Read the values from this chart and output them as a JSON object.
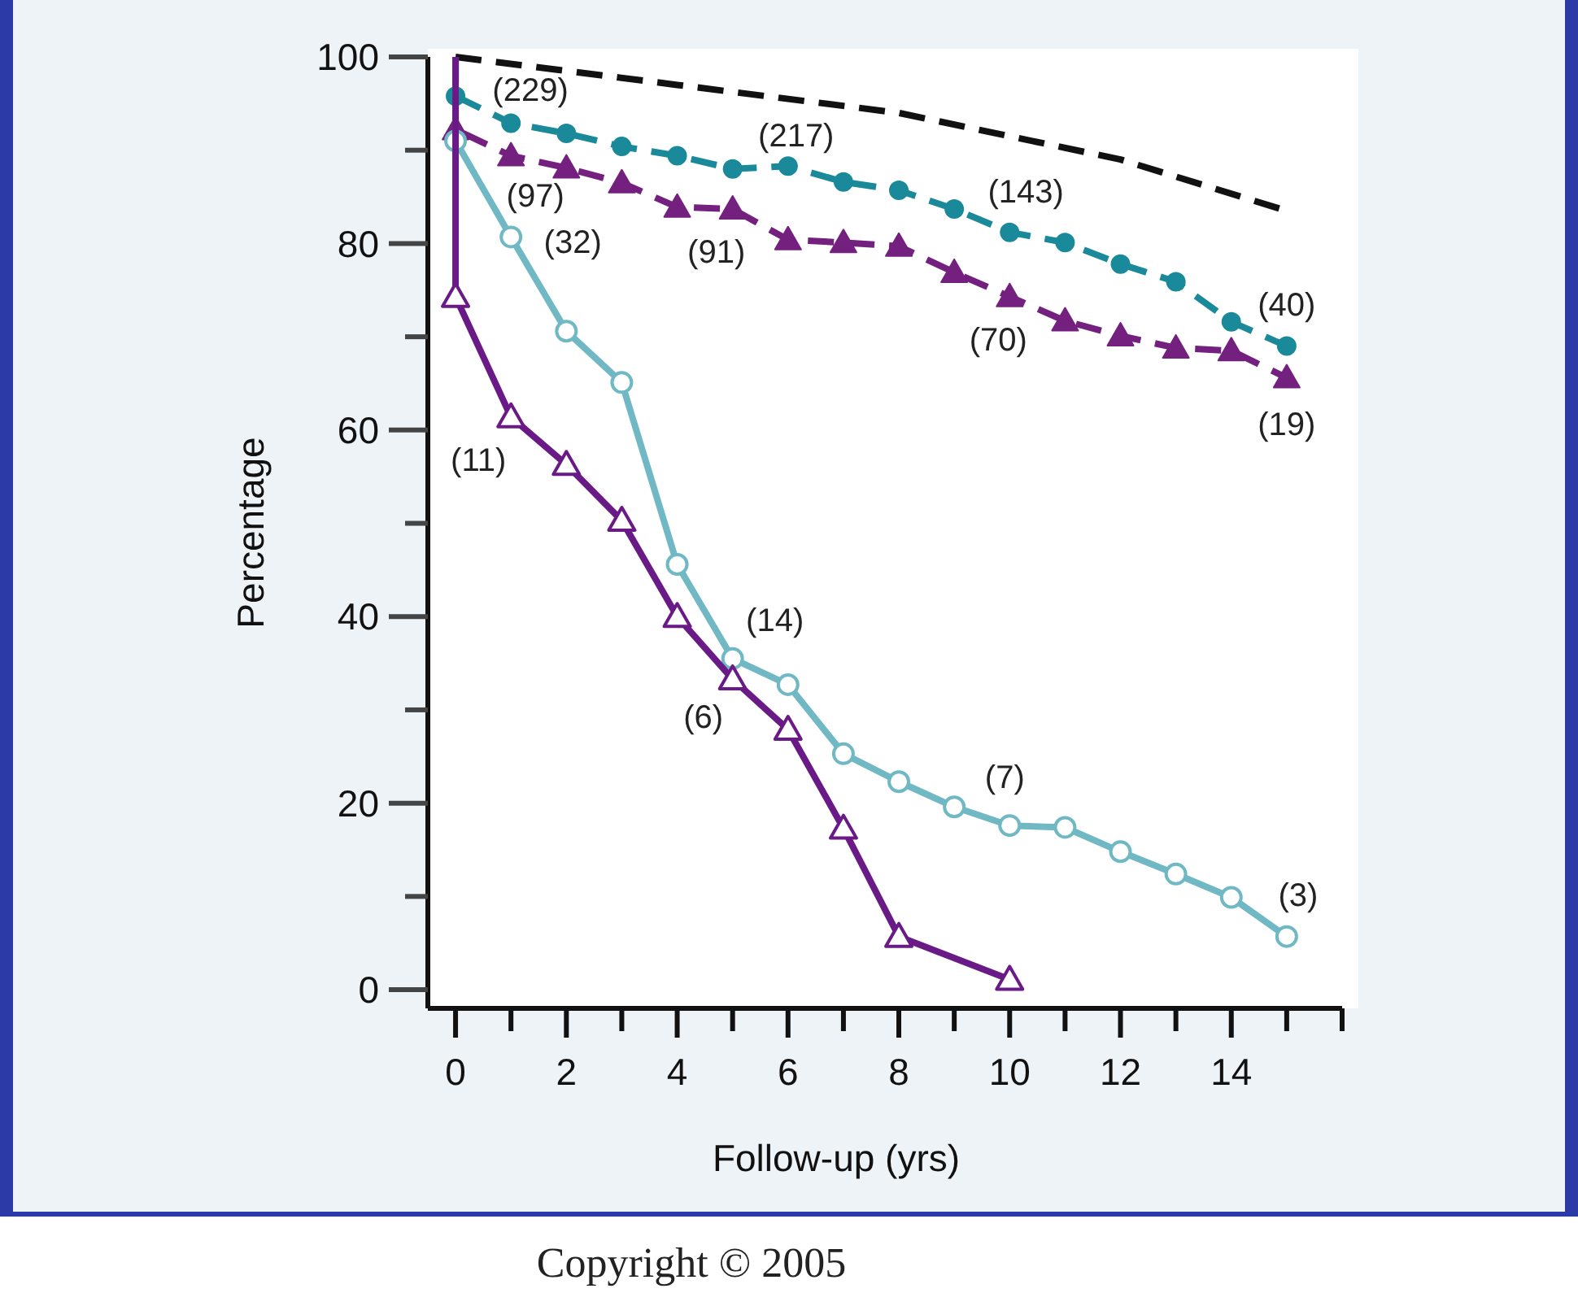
{
  "chart_data": {
    "type": "line",
    "xlabel": "Follow-up (yrs)",
    "ylabel": "Percentage",
    "xlim": [
      -0.5,
      16
    ],
    "ylim": [
      -2,
      100
    ],
    "xticks": [
      0,
      {
        "value": 1,
        "label": null
      },
      2,
      {
        "value": 3,
        "label": null
      },
      4,
      {
        "value": 5,
        "label": null
      },
      6,
      {
        "value": 7,
        "label": null
      },
      8,
      {
        "value": 9,
        "label": null
      },
      10,
      {
        "value": 11,
        "label": null
      },
      12,
      {
        "value": 13,
        "label": null
      },
      14,
      {
        "value": 15,
        "label": null
      },
      {
        "value": 16,
        "label": null
      }
    ],
    "yticks": [
      0,
      {
        "value": 10,
        "label": null
      },
      20,
      {
        "value": 30,
        "label": null
      },
      40,
      {
        "value": 50,
        "label": null
      },
      60,
      {
        "value": 70,
        "label": null
      },
      80,
      {
        "value": 90,
        "label": null
      },
      100
    ],
    "grid": false,
    "series": [
      {
        "color": "#111111",
        "line_style": "dashed",
        "marker": "none",
        "x": [
          0,
          4,
          8,
          12,
          15
        ],
        "values": [
          100,
          97,
          94,
          89,
          83.5
        ]
      },
      {
        "color": "#1a8a9a",
        "line_style": "dashed",
        "marker": "circle",
        "x": [
          0,
          0,
          1,
          2,
          3,
          4,
          5,
          6,
          7,
          8,
          9,
          10,
          11,
          12,
          13,
          14,
          15
        ],
        "values": [
          100,
          95.8,
          92.9,
          91.8,
          90.4,
          89.4,
          88.0,
          88.3,
          86.6,
          85.7,
          83.7,
          81.2,
          80.1,
          77.8,
          75.9,
          71.6,
          69.0
        ]
      },
      {
        "color": "#74207f",
        "line_style": "dashed",
        "marker": "triangle",
        "x": [
          0,
          0,
          1,
          2,
          3,
          4,
          5,
          6,
          7,
          8,
          9,
          10,
          11,
          12,
          13,
          14,
          15
        ],
        "values": [
          100,
          92.2,
          89.4,
          88.1,
          86.5,
          83.9,
          83.7,
          80.4,
          80.1,
          79.7,
          76.9,
          74.3,
          71.7,
          70.1,
          68.8,
          68.5,
          65.6
        ]
      },
      {
        "color": "#6fb8c4",
        "line_style": "solid",
        "marker": "circle",
        "x": [
          0,
          0,
          1,
          2,
          3,
          4,
          5,
          6,
          7,
          8,
          9,
          10,
          11,
          12,
          13,
          14,
          15
        ],
        "values": [
          100,
          91,
          80.7,
          70.6,
          65.1,
          45.6,
          35.5,
          32.7,
          25.3,
          22.3,
          19.6,
          17.6,
          17.4,
          14.8,
          12.4,
          9.9,
          5.7
        ]
      },
      {
        "color": "#6a1a86",
        "line_style": "solid",
        "marker": "triangle",
        "x": [
          0,
          0,
          1,
          2,
          3,
          4,
          5,
          6,
          7,
          8,
          10
        ],
        "values": [
          100,
          74.3,
          61.4,
          56.3,
          50.3,
          40.0,
          33.3,
          27.9,
          17.3,
          5.7,
          1.1
        ]
      }
    ],
    "annotations": [
      {
        "text": "(229)",
        "x": 0,
        "y": 95.8
      },
      {
        "text": "(217)",
        "x": 6,
        "y": 88.3
      },
      {
        "text": "(143)",
        "x": 9,
        "y": 83.7
      },
      {
        "text": "(40)",
        "x": 15,
        "y": 69.0
      },
      {
        "text": "(19)",
        "x": 15,
        "y": 65.6
      },
      {
        "text": "(70)",
        "x": 10,
        "y": 74.3
      },
      {
        "text": "(91)",
        "x": 5,
        "y": 83.7
      },
      {
        "text": "(97)",
        "x": 1,
        "y": 89.4
      },
      {
        "text": "(32)",
        "x": 1,
        "y": 80.7
      },
      {
        "text": "(11)",
        "x": 1,
        "y": 61.4
      },
      {
        "text": "(14)",
        "x": 5,
        "y": 35.5
      },
      {
        "text": "(6)",
        "x": 5,
        "y": 33.3
      },
      {
        "text": "(7)",
        "x": 10,
        "y": 17.6
      },
      {
        "text": "(3)",
        "x": 15,
        "y": 5.7
      },
      "Copyright © 2005"
    ]
  }
}
